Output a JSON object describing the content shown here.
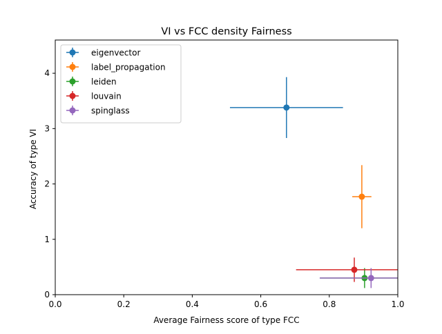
{
  "chart_data": {
    "type": "scatter",
    "title": "VI vs FCC density Fairness",
    "xlabel": "Average Fairness score of type FCC",
    "ylabel": "Accuracy of type VI",
    "xlim": [
      0.0,
      1.0
    ],
    "ylim": [
      0.0,
      4.6
    ],
    "xticks": [
      "0.0",
      "0.2",
      "0.4",
      "0.6",
      "0.8",
      "1.0"
    ],
    "yticks": [
      "0",
      "1",
      "2",
      "3",
      "4"
    ],
    "grid": false,
    "legend_position": "top-left",
    "series": [
      {
        "name": "eigenvector",
        "color": "#1f77b4",
        "x": 0.675,
        "y": 3.38,
        "xerr": 0.165,
        "yerr": 0.55
      },
      {
        "name": "label_propagation",
        "color": "#ff7f0e",
        "x": 0.895,
        "y": 1.77,
        "xerr": 0.028,
        "yerr": 0.57
      },
      {
        "name": "leiden",
        "color": "#2ca02c",
        "x": 0.903,
        "y": 0.3,
        "xerr": 0.13,
        "yerr": 0.18
      },
      {
        "name": "louvain",
        "color": "#d62728",
        "x": 0.873,
        "y": 0.45,
        "xerr": 0.17,
        "yerr": 0.22
      },
      {
        "name": "spinglass",
        "color": "#9467bd",
        "x": 0.922,
        "y": 0.3,
        "xerr": 0.15,
        "yerr": 0.18
      }
    ]
  }
}
